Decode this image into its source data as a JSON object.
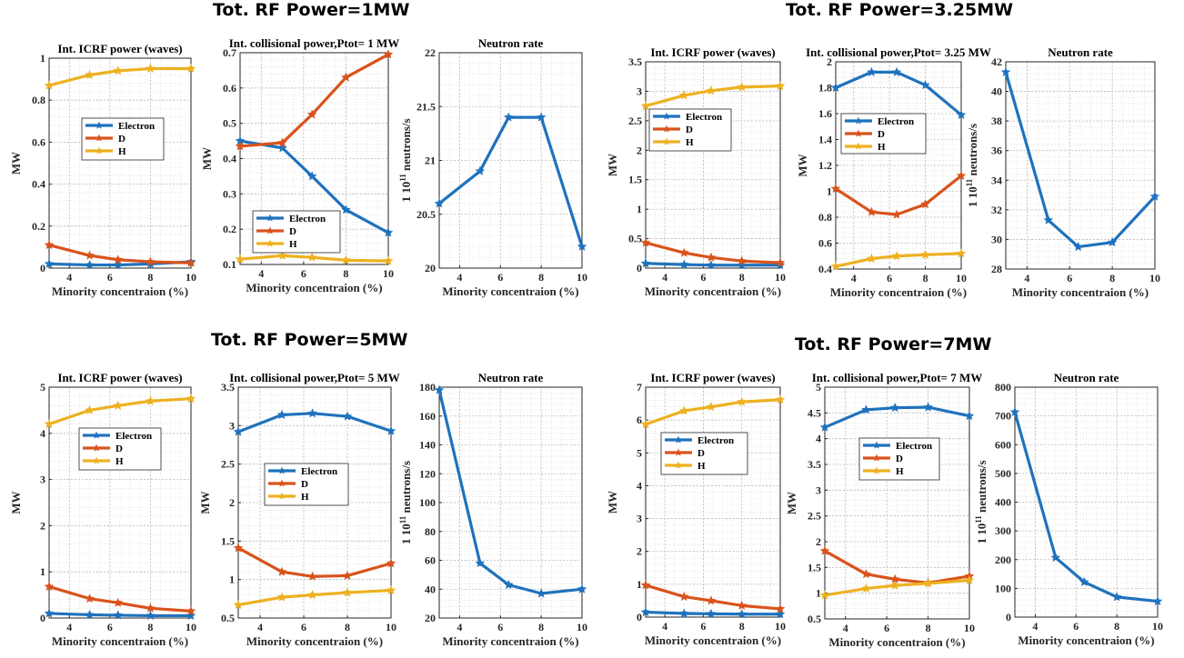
{
  "group_titles": [
    "Tot. RF Power=1MW",
    "Tot. RF Power=3.25MW",
    "Tot. RF Power=5MW",
    "Tot. RF Power=7MW"
  ],
  "colors": {
    "Electron": "#1f72bd",
    "D": "#d9531c",
    "H": "#edb120"
  },
  "chart_data": [
    {
      "type": "line",
      "title": "Int. ICRF power (waves)",
      "xlabel": "Minority concentraion (%)",
      "ylabel": "MW",
      "xlim": [
        3,
        10
      ],
      "ylim": [
        0,
        1
      ],
      "yticks": [
        0,
        0.2,
        0.4,
        0.6,
        0.8,
        1
      ],
      "xticks": [
        4,
        6,
        8,
        10
      ],
      "grid": true,
      "legend": "center",
      "x": [
        3,
        5,
        6.4,
        8,
        10
      ],
      "series": [
        {
          "name": "Electron",
          "values": [
            0.02,
            0.015,
            0.015,
            0.02,
            0.03
          ]
        },
        {
          "name": "D",
          "values": [
            0.11,
            0.06,
            0.04,
            0.03,
            0.025
          ]
        },
        {
          "name": "H",
          "values": [
            0.87,
            0.92,
            0.94,
            0.95,
            0.95
          ]
        }
      ]
    },
    {
      "type": "line",
      "title": "Int. collisional power,Ptot= 1  MW",
      "xlabel": "Minority concentraion (%)",
      "ylabel": "MW",
      "xlim": [
        3,
        10
      ],
      "ylim": [
        0.1,
        0.7
      ],
      "yticks": [
        0.1,
        0.2,
        0.3,
        0.4,
        0.5,
        0.6,
        0.7
      ],
      "xticks": [
        4,
        6,
        8,
        10
      ],
      "grid": true,
      "legend": "bottom-left",
      "x": [
        3,
        5,
        6.4,
        8,
        10
      ],
      "series": [
        {
          "name": "Electron",
          "values": [
            0.45,
            0.43,
            0.35,
            0.255,
            0.19
          ]
        },
        {
          "name": "D",
          "values": [
            0.435,
            0.445,
            0.525,
            0.63,
            0.695
          ]
        },
        {
          "name": "H",
          "values": [
            0.115,
            0.125,
            0.12,
            0.112,
            0.11
          ]
        }
      ]
    },
    {
      "type": "line",
      "title": "Neutron rate",
      "xlabel": "Minority concentraion (%)",
      "ylabel": "1 10^11 neutrons/s",
      "xlim": [
        3,
        10
      ],
      "ylim": [
        20,
        22
      ],
      "yticks": [
        20,
        20.5,
        21,
        21.5,
        22
      ],
      "xticks": [
        4,
        6,
        8,
        10
      ],
      "grid": true,
      "legend": "none",
      "x": [
        3,
        5,
        6.4,
        8,
        10
      ],
      "series": [
        {
          "values": [
            20.6,
            20.9,
            21.4,
            21.4,
            20.2
          ]
        }
      ]
    },
    {
      "type": "line",
      "title": "Int. ICRF power (waves)",
      "xlabel": "Minority concentraion (%)",
      "ylabel": "MW",
      "xlim": [
        3,
        10
      ],
      "ylim": [
        0,
        3.5
      ],
      "yticks": [
        0,
        0.5,
        1,
        1.5,
        2,
        2.5,
        3,
        3.5
      ],
      "xticks": [
        4,
        6,
        8,
        10
      ],
      "grid": true,
      "legend": "center-left",
      "x": [
        3,
        5,
        6.4,
        8,
        10
      ],
      "series": [
        {
          "name": "Electron",
          "values": [
            0.08,
            0.06,
            0.05,
            0.05,
            0.05
          ]
        },
        {
          "name": "D",
          "values": [
            0.43,
            0.26,
            0.18,
            0.12,
            0.09
          ]
        },
        {
          "name": "H",
          "values": [
            2.75,
            2.93,
            3.01,
            3.07,
            3.09
          ]
        }
      ]
    },
    {
      "type": "line",
      "title": "Int. collisional power,Ptot= 3.25  MW",
      "xlabel": "Minority concentraion (%)",
      "ylabel": "MW",
      "xlim": [
        3,
        10
      ],
      "ylim": [
        0.4,
        2
      ],
      "yticks": [
        0.4,
        0.6,
        0.8,
        1,
        1.2,
        1.4,
        1.6,
        1.8,
        2
      ],
      "xticks": [
        4,
        6,
        8,
        10
      ],
      "grid": true,
      "legend": "center-left",
      "x": [
        3,
        5,
        6.4,
        8,
        10
      ],
      "series": [
        {
          "name": "Electron",
          "values": [
            1.8,
            1.92,
            1.92,
            1.82,
            1.59
          ]
        },
        {
          "name": "D",
          "values": [
            1.02,
            0.84,
            0.82,
            0.9,
            1.12
          ]
        },
        {
          "name": "H",
          "values": [
            0.42,
            0.48,
            0.5,
            0.51,
            0.52
          ]
        }
      ]
    },
    {
      "type": "line",
      "title": "Neutron rate",
      "xlabel": "Minority concentraion (%)",
      "ylabel": "1 10^11 neutrons/s",
      "xlim": [
        3,
        10
      ],
      "ylim": [
        28,
        42
      ],
      "yticks": [
        28,
        30,
        32,
        34,
        36,
        38,
        40,
        42
      ],
      "xticks": [
        4,
        6,
        8,
        10
      ],
      "grid": true,
      "legend": "none",
      "x": [
        3,
        5,
        6.4,
        8,
        10
      ],
      "series": [
        {
          "values": [
            41.3,
            31.3,
            29.5,
            29.8,
            32.9
          ]
        }
      ]
    },
    {
      "type": "line",
      "title": "Int. ICRF power (waves)",
      "xlabel": "Minority concentraion (%)",
      "ylabel": "MW",
      "xlim": [
        3,
        10
      ],
      "ylim": [
        0,
        5
      ],
      "yticks": [
        0,
        1,
        2,
        3,
        4,
        5
      ],
      "xticks": [
        4,
        6,
        8,
        10
      ],
      "grid": true,
      "legend": "center",
      "x": [
        3,
        5,
        6.4,
        8,
        10
      ],
      "series": [
        {
          "name": "Electron",
          "values": [
            0.1,
            0.07,
            0.06,
            0.05,
            0.05
          ]
        },
        {
          "name": "D",
          "values": [
            0.68,
            0.42,
            0.33,
            0.21,
            0.15
          ]
        },
        {
          "name": "H",
          "values": [
            4.2,
            4.5,
            4.6,
            4.7,
            4.75
          ]
        }
      ]
    },
    {
      "type": "line",
      "title": "Int. collisional power,Ptot= 5  MW",
      "xlabel": "Minority concentraion (%)",
      "ylabel": "MW",
      "xlim": [
        3,
        10
      ],
      "ylim": [
        0.5,
        3.5
      ],
      "yticks": [
        0.5,
        1,
        1.5,
        2,
        2.5,
        3,
        3.5
      ],
      "xticks": [
        4,
        6,
        8,
        10
      ],
      "grid": true,
      "legend": "center",
      "x": [
        3,
        5,
        6.4,
        8,
        10
      ],
      "series": [
        {
          "name": "Electron",
          "values": [
            2.92,
            3.14,
            3.16,
            3.12,
            2.93
          ]
        },
        {
          "name": "D",
          "values": [
            1.41,
            1.1,
            1.04,
            1.05,
            1.21
          ]
        },
        {
          "name": "H",
          "values": [
            0.67,
            0.77,
            0.8,
            0.83,
            0.86
          ]
        }
      ]
    },
    {
      "type": "line",
      "title": "Neutron rate",
      "xlabel": "Minority concentraion (%)",
      "ylabel": "1 10^11 neutrons/s",
      "xlim": [
        3,
        10
      ],
      "ylim": [
        20,
        180
      ],
      "yticks": [
        20,
        40,
        60,
        80,
        100,
        120,
        140,
        160,
        180
      ],
      "xticks": [
        4,
        6,
        8,
        10
      ],
      "grid": true,
      "legend": "none",
      "x": [
        3,
        5,
        6.4,
        8,
        10
      ],
      "series": [
        {
          "values": [
            178,
            58,
            43,
            37,
            40
          ]
        }
      ]
    },
    {
      "type": "line",
      "title": "Int. ICRF power (waves)",
      "xlabel": "Minority concentraion (%)",
      "ylabel": "MW",
      "xlim": [
        3,
        10
      ],
      "ylim": [
        0,
        7
      ],
      "yticks": [
        0,
        1,
        2,
        3,
        4,
        5,
        6,
        7
      ],
      "xticks": [
        4,
        6,
        8,
        10
      ],
      "grid": true,
      "legend": "center",
      "x": [
        3,
        5,
        6.4,
        8,
        10
      ],
      "series": [
        {
          "name": "Electron",
          "values": [
            0.15,
            0.11,
            0.1,
            0.09,
            0.09
          ]
        },
        {
          "name": "D",
          "values": [
            0.97,
            0.62,
            0.5,
            0.35,
            0.25
          ]
        },
        {
          "name": "H",
          "values": [
            5.87,
            6.28,
            6.4,
            6.55,
            6.62
          ]
        }
      ]
    },
    {
      "type": "line",
      "title": "Int. collisional power,Ptot= 7  MW",
      "xlabel": "Minority concentraion (%)",
      "ylabel": "MW",
      "xlim": [
        3,
        10
      ],
      "ylim": [
        0.5,
        5
      ],
      "yticks": [
        0.5,
        1,
        1.5,
        2,
        2.5,
        3,
        3.5,
        4,
        4.5,
        5
      ],
      "xticks": [
        4,
        6,
        8,
        10
      ],
      "grid": true,
      "legend": "center",
      "x": [
        3,
        5,
        6.4,
        8,
        10
      ],
      "series": [
        {
          "name": "Electron",
          "values": [
            4.22,
            4.56,
            4.6,
            4.61,
            4.44
          ]
        },
        {
          "name": "D",
          "values": [
            1.82,
            1.37,
            1.27,
            1.2,
            1.33
          ]
        },
        {
          "name": "H",
          "values": [
            0.96,
            1.09,
            1.15,
            1.19,
            1.25
          ]
        }
      ]
    },
    {
      "type": "line",
      "title": "Neutron rate",
      "xlabel": "Minority concentraion (%)",
      "ylabel": "1 10^11 neutrons/s",
      "xlim": [
        3,
        10
      ],
      "ylim": [
        0,
        800
      ],
      "yticks": [
        0,
        100,
        200,
        300,
        400,
        500,
        600,
        700,
        800
      ],
      "xticks": [
        4,
        6,
        8,
        10
      ],
      "grid": true,
      "legend": "none",
      "x": [
        3,
        5,
        6.4,
        8,
        10
      ],
      "series": [
        {
          "values": [
            713,
            207,
            122,
            70,
            55
          ]
        }
      ]
    }
  ]
}
